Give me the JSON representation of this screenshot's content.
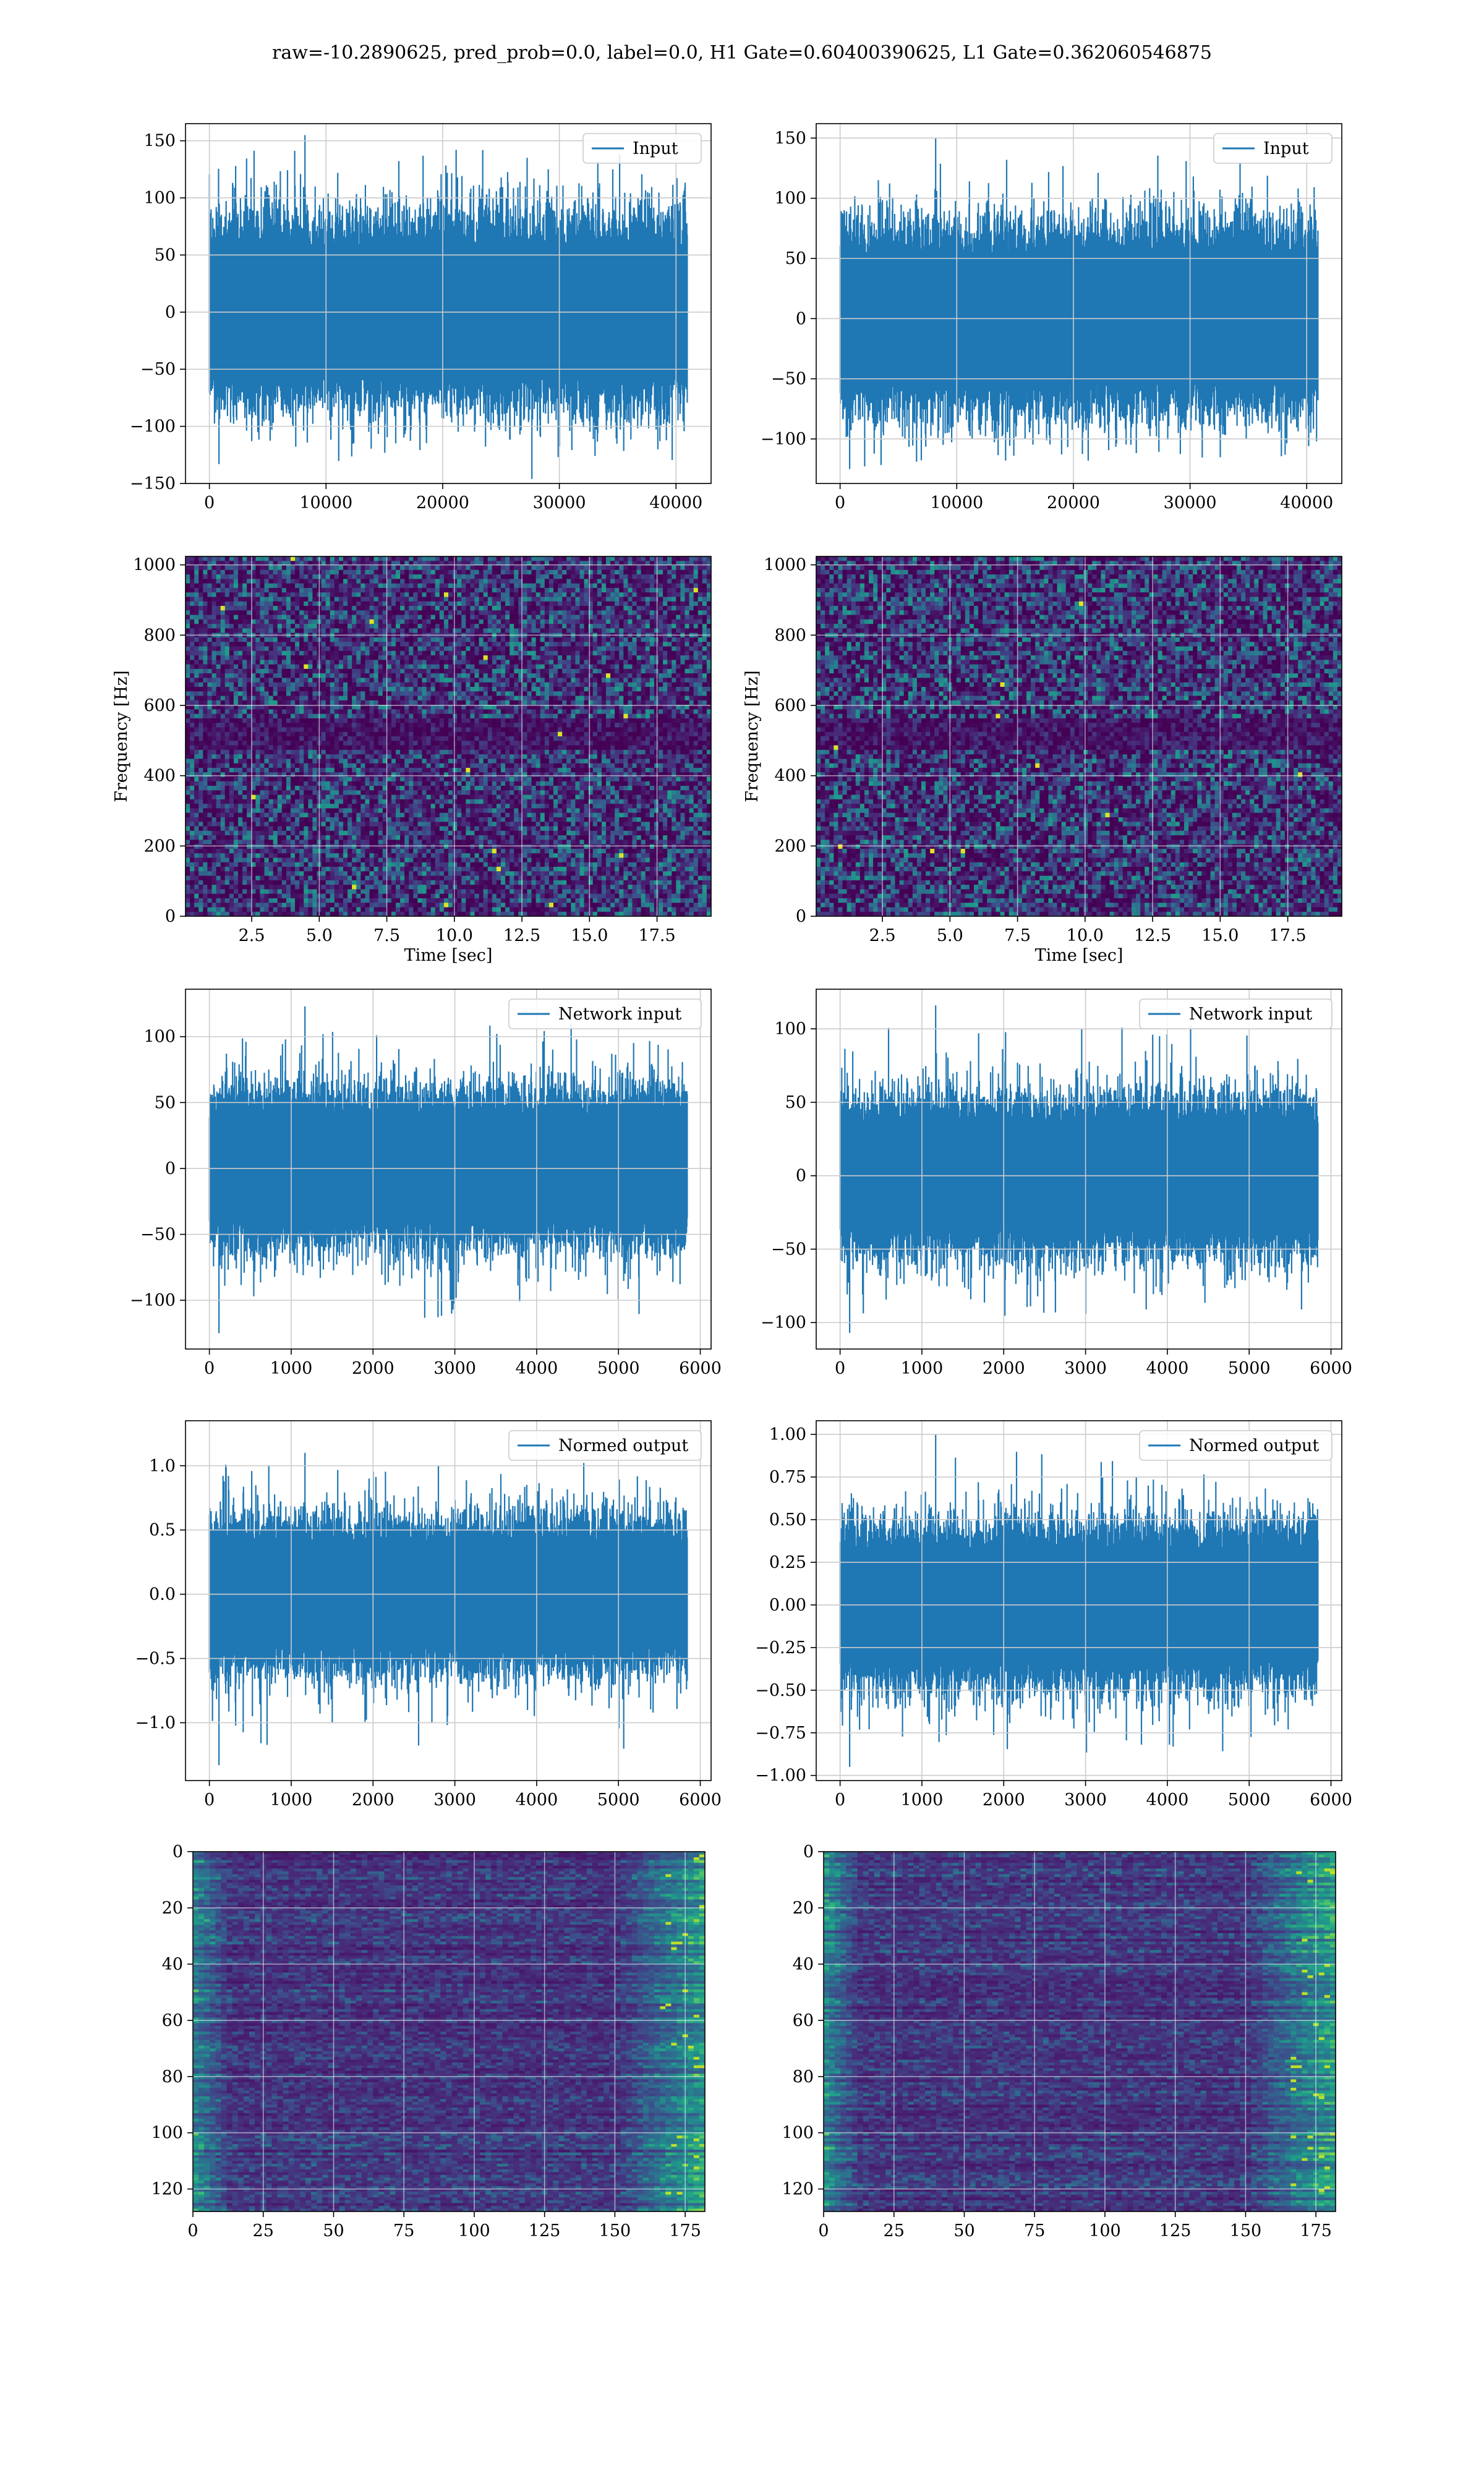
{
  "figure": {
    "suptitle": "raw=-10.2890625, pred_prob=0.0, label=0.0, H1 Gate=0.60400390625, L1 Gate=0.362060546875"
  },
  "colors": {
    "line": "#1f77b4",
    "grid": "#cccccc",
    "viridis_low": "#440154",
    "viridis_mid": "#21918c",
    "viridis_high": "#fde725"
  },
  "chart_data": [
    {
      "id": "h1-input",
      "type": "line",
      "legend": "top-right",
      "series": [
        {
          "name": "Input",
          "envelope": {
            "x_end": 40960,
            "core": [
              -70,
              70
            ],
            "max": 155,
            "min": -133
          }
        }
      ],
      "xlim": [
        -2048,
        43008
      ],
      "ylim": [
        -150,
        165
      ],
      "xticks": [
        "0",
        "10000",
        "20000",
        "30000",
        "40000"
      ],
      "xtick_values": [
        0,
        10000,
        20000,
        30000,
        40000
      ],
      "yticks": [
        "−150",
        "−100",
        "−50",
        "0",
        "50",
        "100",
        "150"
      ],
      "ytick_values": [
        -150,
        -100,
        -50,
        0,
        50,
        100,
        150
      ],
      "xlabel": "",
      "ylabel": "",
      "grid": true
    },
    {
      "id": "l1-input",
      "type": "line",
      "legend": "top-right",
      "series": [
        {
          "name": "Input",
          "envelope": {
            "x_end": 40960,
            "core": [
              -65,
              65
            ],
            "max": 150,
            "min": -125
          }
        }
      ],
      "xlim": [
        -2048,
        43008
      ],
      "ylim": [
        -137,
        162
      ],
      "xticks": [
        "0",
        "10000",
        "20000",
        "30000",
        "40000"
      ],
      "xtick_values": [
        0,
        10000,
        20000,
        30000,
        40000
      ],
      "yticks": [
        "−100",
        "−50",
        "0",
        "50",
        "100",
        "150"
      ],
      "ytick_values": [
        -100,
        -50,
        0,
        50,
        100,
        150
      ],
      "xlabel": "",
      "ylabel": "",
      "grid": true
    },
    {
      "id": "h1-spectrogram",
      "type": "heatmap",
      "kind": "spectrogram",
      "xlim": [
        0.05,
        19.5
      ],
      "ylim": [
        0,
        1024
      ],
      "xticks": [
        "2.5",
        "5.0",
        "7.5",
        "10.0",
        "12.5",
        "15.0",
        "17.5"
      ],
      "xtick_values": [
        2.5,
        5,
        7.5,
        10,
        12.5,
        15,
        17.5
      ],
      "yticks": [
        "0",
        "200",
        "400",
        "600",
        "800",
        "1000"
      ],
      "ytick_values": [
        0,
        200,
        400,
        600,
        800,
        1000
      ],
      "xlabel": "Time [sec]",
      "ylabel": "Frequency [Hz]",
      "grid": true
    },
    {
      "id": "l1-spectrogram",
      "type": "heatmap",
      "kind": "spectrogram",
      "xlim": [
        0.05,
        19.5
      ],
      "ylim": [
        0,
        1024
      ],
      "xticks": [
        "2.5",
        "5.0",
        "7.5",
        "10.0",
        "12.5",
        "15.0",
        "17.5"
      ],
      "xtick_values": [
        2.5,
        5,
        7.5,
        10,
        12.5,
        15,
        17.5
      ],
      "yticks": [
        "0",
        "200",
        "400",
        "600",
        "800",
        "1000"
      ],
      "ytick_values": [
        0,
        200,
        400,
        600,
        800,
        1000
      ],
      "xlabel": "Time [sec]",
      "ylabel": "Frequency [Hz]",
      "grid": true
    },
    {
      "id": "h1-network-input",
      "type": "line",
      "legend": "top-right",
      "series": [
        {
          "name": "Network input",
          "envelope": {
            "x_end": 5840,
            "core": [
              -50,
              50
            ],
            "max": 123,
            "min": -125
          }
        }
      ],
      "xlim": [
        -292,
        6132
      ],
      "ylim": [
        -137,
        136
      ],
      "xticks": [
        "0",
        "1000",
        "2000",
        "3000",
        "4000",
        "5000",
        "6000"
      ],
      "xtick_values": [
        0,
        1000,
        2000,
        3000,
        4000,
        5000,
        6000
      ],
      "yticks": [
        "−100",
        "−50",
        "0",
        "50",
        "100"
      ],
      "ytick_values": [
        -100,
        -50,
        0,
        50,
        100
      ],
      "xlabel": "",
      "ylabel": "",
      "grid": true
    },
    {
      "id": "l1-network-input",
      "type": "line",
      "legend": "top-right",
      "series": [
        {
          "name": "Network input",
          "envelope": {
            "x_end": 5840,
            "core": [
              -45,
              45
            ],
            "max": 116,
            "min": -107
          }
        }
      ],
      "xlim": [
        -292,
        6132
      ],
      "ylim": [
        -118,
        127
      ],
      "xticks": [
        "0",
        "1000",
        "2000",
        "3000",
        "4000",
        "5000",
        "6000"
      ],
      "xtick_values": [
        0,
        1000,
        2000,
        3000,
        4000,
        5000,
        6000
      ],
      "yticks": [
        "−100",
        "−50",
        "0",
        "50",
        "100"
      ],
      "ytick_values": [
        -100,
        -50,
        0,
        50,
        100
      ],
      "xlabel": "",
      "ylabel": "",
      "grid": true
    },
    {
      "id": "h1-normed-output",
      "type": "line",
      "legend": "top-right",
      "series": [
        {
          "name": "Normed output",
          "envelope": {
            "x_end": 5840,
            "core": [
              -0.5,
              0.5
            ],
            "max": 1.1,
            "min": -1.33
          }
        }
      ],
      "xlim": [
        -292,
        6132
      ],
      "ylim": [
        -1.45,
        1.35
      ],
      "xticks": [
        "0",
        "1000",
        "2000",
        "3000",
        "4000",
        "5000",
        "6000"
      ],
      "xtick_values": [
        0,
        1000,
        2000,
        3000,
        4000,
        5000,
        6000
      ],
      "yticks": [
        "−1.0",
        "−0.5",
        "0.0",
        "0.5",
        "1.0"
      ],
      "ytick_values": [
        -1,
        -0.5,
        0,
        0.5,
        1
      ],
      "xlabel": "",
      "ylabel": "",
      "grid": true
    },
    {
      "id": "l1-normed-output",
      "type": "line",
      "legend": "top-right",
      "series": [
        {
          "name": "Normed output",
          "envelope": {
            "x_end": 5840,
            "core": [
              -0.4,
              0.4
            ],
            "max": 1.0,
            "min": -0.95
          }
        }
      ],
      "xlim": [
        -292,
        6132
      ],
      "ylim": [
        -1.03,
        1.08
      ],
      "xticks": [
        "0",
        "1000",
        "2000",
        "3000",
        "4000",
        "5000",
        "6000"
      ],
      "xtick_values": [
        0,
        1000,
        2000,
        3000,
        4000,
        5000,
        6000
      ],
      "yticks": [
        "−1.00",
        "−0.75",
        "−0.50",
        "−0.25",
        "0.00",
        "0.25",
        "0.50",
        "0.75",
        "1.00"
      ],
      "ytick_values": [
        -1,
        -0.75,
        -0.5,
        -0.25,
        0,
        0.25,
        0.5,
        0.75,
        1
      ],
      "xlabel": "",
      "ylabel": "",
      "grid": true
    },
    {
      "id": "h1-feature-map",
      "type": "heatmap",
      "kind": "feature-map",
      "xlim": [
        0,
        182
      ],
      "ylim": [
        128,
        0
      ],
      "xticks": [
        "0",
        "25",
        "50",
        "75",
        "100",
        "125",
        "150",
        "175"
      ],
      "xtick_values": [
        0,
        25,
        50,
        75,
        100,
        125,
        150,
        175
      ],
      "yticks": [
        "0",
        "20",
        "40",
        "60",
        "80",
        "100",
        "120"
      ],
      "ytick_values": [
        0,
        20,
        40,
        60,
        80,
        100,
        120
      ],
      "xlabel": "",
      "ylabel": "",
      "grid": true
    },
    {
      "id": "l1-feature-map",
      "type": "heatmap",
      "kind": "feature-map",
      "xlim": [
        0,
        182
      ],
      "ylim": [
        128,
        0
      ],
      "xticks": [
        "0",
        "25",
        "50",
        "75",
        "100",
        "125",
        "150",
        "175"
      ],
      "xtick_values": [
        0,
        25,
        50,
        75,
        100,
        125,
        150,
        175
      ],
      "yticks": [
        "0",
        "20",
        "40",
        "60",
        "80",
        "100",
        "120"
      ],
      "ytick_values": [
        0,
        20,
        40,
        60,
        80,
        100,
        120
      ],
      "xlabel": "",
      "ylabel": "",
      "grid": true
    }
  ]
}
